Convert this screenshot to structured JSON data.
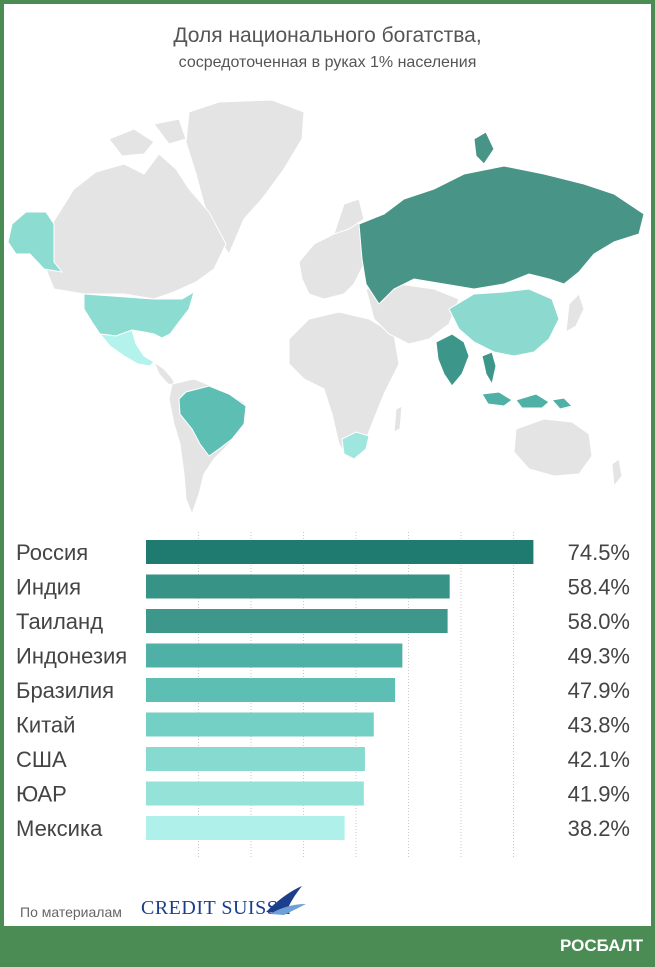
{
  "title": "Доля национального богатства,",
  "subtitle": "сосредоточенная в руках 1% населения",
  "colors": {
    "background": "#ffffff",
    "frame": "#4b8b54",
    "land": "#e4e4e4",
    "grid": "#c8c8c8",
    "label": "#444444"
  },
  "chart_data": {
    "type": "bar",
    "orientation": "horizontal",
    "categories": [
      "Россия",
      "Индия",
      "Таиланд",
      "Индонезия",
      "Бразилия",
      "Китай",
      "США",
      "ЮАР",
      "Мексика"
    ],
    "values": [
      74.5,
      58.4,
      58.0,
      49.3,
      47.9,
      43.8,
      42.1,
      41.9,
      38.2
    ],
    "value_labels": [
      "74.5%",
      "58.4%",
      "58.0%",
      "49.3%",
      "47.9%",
      "43.8%",
      "42.1%",
      "41.9%",
      "38.2%"
    ],
    "bar_colors": [
      "#1f7a70",
      "#379386",
      "#3d978a",
      "#4fb1a5",
      "#5dbeb3",
      "#74cfc4",
      "#86dad0",
      "#95e2d8",
      "#b0f0ea"
    ],
    "xlim": [
      0,
      75
    ],
    "grid": true
  },
  "map": {
    "highlighted_countries": [
      {
        "name": "Россия",
        "color": "#489486"
      },
      {
        "name": "Индия",
        "color": "#3c978a"
      },
      {
        "name": "Таиланд",
        "color": "#3c978a"
      },
      {
        "name": "Индонезия",
        "color": "#4fb1a5"
      },
      {
        "name": "Бразилия",
        "color": "#5dbeb3"
      },
      {
        "name": "Китай",
        "color": "#8cd9d0"
      },
      {
        "name": "США",
        "color": "#8cdcd2"
      },
      {
        "name": "ЮАР",
        "color": "#9fe6de"
      },
      {
        "name": "Мексика",
        "color": "#b4f2ec"
      }
    ]
  },
  "footer": {
    "source_label": "По материалам",
    "source_logo_text": "CREDIT SUISSE",
    "brand": "РОСБАЛТ"
  }
}
